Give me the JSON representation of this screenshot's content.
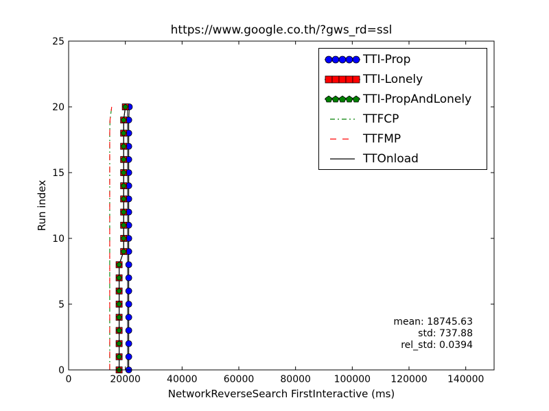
{
  "chart_data": {
    "type": "line",
    "title": "https://www.google.co.th/?gws_rd=ssl",
    "xlabel": "NetworkReverseSearch FirstInteractive (ms)",
    "ylabel": "Run index",
    "xlim": [
      0,
      150000
    ],
    "ylim": [
      0,
      25
    ],
    "x_ticks": [
      0,
      20000,
      40000,
      60000,
      80000,
      100000,
      120000,
      140000
    ],
    "x_tick_labels": [
      "0",
      "20000",
      "40000",
      "60000",
      "80000",
      "100000",
      "120000",
      "140000"
    ],
    "y_ticks": [
      0,
      5,
      10,
      15,
      20,
      25
    ],
    "y_tick_labels": [
      "0",
      "5",
      "10",
      "15",
      "20",
      "25"
    ],
    "grid": false,
    "legend_position": "top-right",
    "y": [
      0,
      1,
      2,
      3,
      4,
      5,
      6,
      7,
      8,
      9,
      10,
      11,
      12,
      13,
      14,
      15,
      16,
      17,
      18,
      19,
      20
    ],
    "series": [
      {
        "name": "TTI-Prop",
        "color": "#0000ff",
        "marker": "circle",
        "line": "solid",
        "x": [
          21200,
          21200,
          21200,
          21200,
          21200,
          21200,
          21200,
          21200,
          21200,
          21200,
          21200,
          21200,
          21200,
          21200,
          21200,
          21200,
          21200,
          21200,
          21200,
          21200,
          21400
        ]
      },
      {
        "name": "TTI-Lonely",
        "color": "#ff0000",
        "marker": "square",
        "line": "solid",
        "x": [
          17800,
          17800,
          17800,
          17800,
          17800,
          17800,
          17800,
          17800,
          17800,
          19400,
          19400,
          19400,
          19400,
          19400,
          19400,
          19400,
          19400,
          19400,
          19400,
          19400,
          20000
        ]
      },
      {
        "name": "TTI-PropAndLonely",
        "color": "#008000",
        "marker": "pentagon",
        "line": "solid",
        "x": [
          17800,
          17800,
          17800,
          17800,
          17800,
          17800,
          17800,
          17800,
          17800,
          19400,
          19400,
          19400,
          19400,
          19400,
          19400,
          19400,
          19400,
          19400,
          19400,
          19400,
          20000
        ]
      },
      {
        "name": "TTFCP",
        "color": "#008000",
        "marker": "none",
        "line": "dashdot",
        "x": [
          14500,
          14500,
          14500,
          14500,
          14500,
          14500,
          14500,
          14500,
          14500,
          14500,
          14500,
          14500,
          14500,
          14500,
          14500,
          14500,
          14500,
          14500,
          14500,
          14600,
          15200
        ]
      },
      {
        "name": "TTFMP",
        "color": "#ff0000",
        "marker": "none",
        "line": "dashed",
        "x": [
          14500,
          14500,
          14500,
          14500,
          14500,
          14500,
          14500,
          14500,
          14500,
          14500,
          14500,
          14500,
          14500,
          14500,
          14500,
          14500,
          14500,
          14500,
          14500,
          14600,
          15200
        ]
      },
      {
        "name": "TTOnload",
        "color": "#000000",
        "marker": "none",
        "line": "solid",
        "x": [
          20800,
          20800,
          20800,
          20800,
          20800,
          20800,
          20800,
          20800,
          20800,
          20800,
          20800,
          20800,
          20800,
          20800,
          20800,
          20800,
          20800,
          20800,
          20800,
          20800,
          20800
        ]
      }
    ],
    "annotations": [
      "mean: 18745.63",
      "std: 737.88",
      "rel_std: 0.0394"
    ]
  }
}
